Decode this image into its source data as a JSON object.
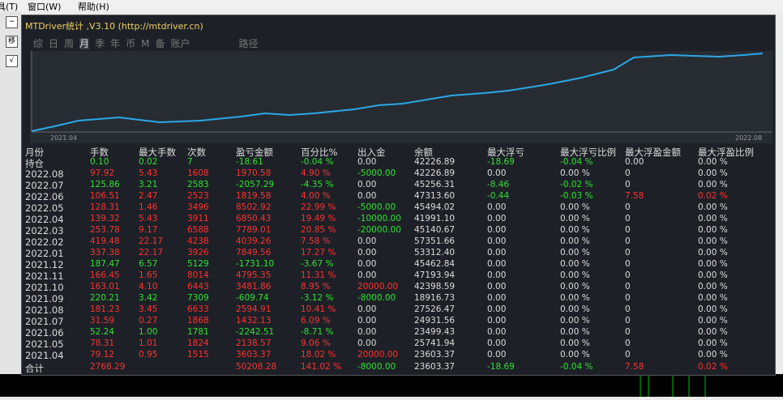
{
  "menu": [
    "具(T)",
    "窗口(W)",
    "帮助(H)"
  ],
  "panel": {
    "title": "MTDriver统计 ,V3.10 (http://mtdriver.cn)",
    "tabs": [
      "综",
      "日",
      "周",
      "月",
      "季",
      "年",
      "币",
      "M",
      "备",
      "账户",
      "路径"
    ],
    "chart": {
      "x_start": "2021.04",
      "x_end": "2022.08"
    },
    "table": {
      "header": [
        "月份",
        "手数",
        "最大手数",
        "次数",
        "盈亏金额",
        "百分比%",
        "出入金",
        "余额",
        "最大浮亏",
        "最大浮亏比例",
        "最大浮盈金额",
        "最大浮盈比例"
      ],
      "rows": [
        [
          "持仓",
          "0.10",
          "0.02",
          "7",
          "-18.61",
          "-0.04 %",
          "0.00",
          "42226.89",
          "-18.69",
          "-0.04 %",
          "0.00",
          "0.00 %"
        ],
        [
          "2022.08",
          "97.92",
          "5.43",
          "1608",
          "1970.58",
          "4.90 %",
          "-5000.00",
          "42226.89",
          "0.00",
          "0.00 %",
          "0",
          "0.00 %"
        ],
        [
          "2022.07",
          "125.86",
          "3.21",
          "2583",
          "-2057.29",
          "-4.35 %",
          "0.00",
          "45256.31",
          "-8.46",
          "-0.02 %",
          "0",
          "0.00 %"
        ],
        [
          "2022.06",
          "106.51",
          "2.47",
          "2523",
          "1819.58",
          "4.00 %",
          "0.00",
          "47313.60",
          "-0.44",
          "-0.03 %",
          "7.58",
          "0.02 %"
        ],
        [
          "2022.05",
          "128.31",
          "1.46",
          "3496",
          "8502.92",
          "22.99 %",
          "-5000.00",
          "45494.02",
          "0.00",
          "0.00 %",
          "0",
          "0.00 %"
        ],
        [
          "2022.04",
          "139.32",
          "5.43",
          "3911",
          "6850.43",
          "19.49 %",
          "-10000.00",
          "41991.10",
          "0.00",
          "0.00 %",
          "0",
          "0.00 %"
        ],
        [
          "2022.03",
          "253.78",
          "9.17",
          "6588",
          "7789.01",
          "20.85 %",
          "-20000.00",
          "45140.67",
          "0.00",
          "0.00 %",
          "0",
          "0.00 %"
        ],
        [
          "2022.02",
          "419.48",
          "22.17",
          "4238",
          "4039.26",
          "7.58 %",
          "0.00",
          "57351.66",
          "0.00",
          "0.00 %",
          "0",
          "0.00 %"
        ],
        [
          "2022.01",
          "337.38",
          "22.17",
          "3926",
          "7849.56",
          "17.27 %",
          "0.00",
          "53312.40",
          "0.00",
          "0.00 %",
          "0",
          "0.00 %"
        ],
        [
          "2021.12",
          "187.47",
          "6.57",
          "5129",
          "-1731.10",
          "-3.67 %",
          "0.00",
          "45462.84",
          "0.00",
          "0.00 %",
          "0",
          "0.00 %"
        ],
        [
          "2021.11",
          "166.45",
          "1.65",
          "8014",
          "4795.35",
          "11.31 %",
          "0.00",
          "47193.94",
          "0.00",
          "0.00 %",
          "0",
          "0.00 %"
        ],
        [
          "2021.10",
          "163.01",
          "4.10",
          "6443",
          "3481.86",
          "8.95 %",
          "20000.00",
          "42398.59",
          "0.00",
          "0.00 %",
          "0",
          "0.00 %"
        ],
        [
          "2021.09",
          "220.21",
          "3.42",
          "7309",
          "-609.74",
          "-3.12 %",
          "-8000.00",
          "18916.73",
          "0.00",
          "0.00 %",
          "0",
          "0.00 %"
        ],
        [
          "2021.08",
          "181.23",
          "3.45",
          "6633",
          "2594.91",
          "10.41 %",
          "0.00",
          "27526.47",
          "0.00",
          "0.00 %",
          "0",
          "0.00 %"
        ],
        [
          "2021.07",
          "31.59",
          "0.27",
          "1868",
          "1432.13",
          "6.09 %",
          "0.00",
          "24931.56",
          "0.00",
          "0.00 %",
          "0",
          "0.00 %"
        ],
        [
          "2021.06",
          "52.24",
          "1.00",
          "1781",
          "-2242.51",
          "-8.71 %",
          "0.00",
          "23499.43",
          "0.00",
          "0.00 %",
          "0",
          "0.00 %"
        ],
        [
          "2021.05",
          "78.31",
          "1.01",
          "1824",
          "2138.57",
          "9.06 %",
          "0.00",
          "25741.94",
          "0.00",
          "0.00 %",
          "0",
          "0.00 %"
        ],
        [
          "2021.04",
          "79.12",
          "0.95",
          "1515",
          "3603.37",
          "18.02 %",
          "20000.00",
          "23603.37",
          "0.00",
          "0.00 %",
          "0",
          "0.00 %"
        ],
        [
          "合计",
          "2768.29",
          null,
          null,
          "50208.28",
          "141.02 %",
          "-8000.00",
          "23603.37",
          "-18.69",
          "-0.04 %",
          "7.58",
          "0.02 %"
        ]
      ]
    }
  }
}
